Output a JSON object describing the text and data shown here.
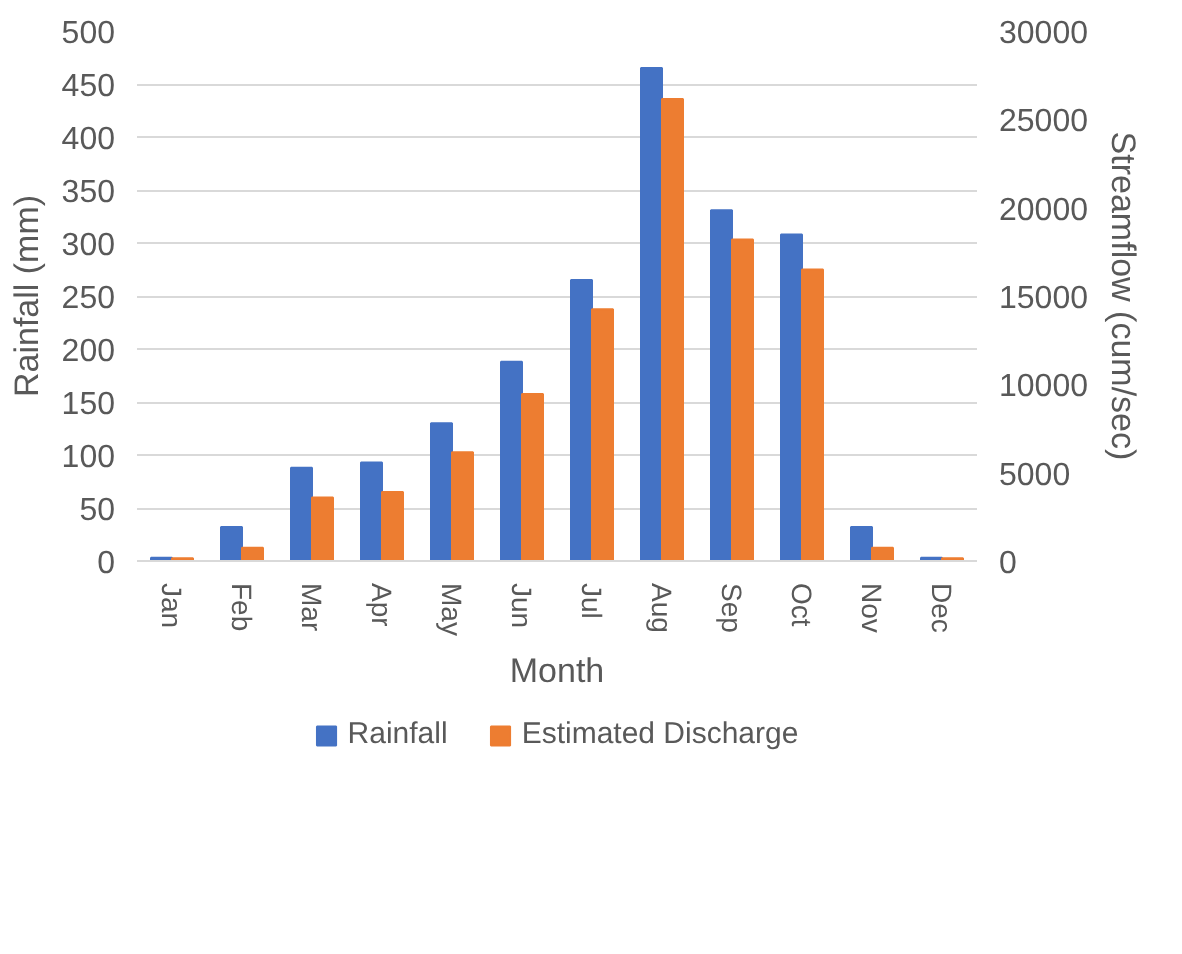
{
  "chart_data": {
    "type": "bar",
    "xlabel": "Month",
    "ylabel": "Rainfall (mm)",
    "y2label": "Streamflow (cum/sec)",
    "categories": [
      "Jan",
      "Feb",
      "Mar",
      "Apr",
      "May",
      "Jun",
      "Jul",
      "Aug",
      "Sep",
      "Oct",
      "Nov",
      "Dec"
    ],
    "series": [
      {
        "name": "Rainfall",
        "color": "#4472c4",
        "values": [
          3,
          32,
          88,
          93,
          130,
          188,
          265,
          465,
          331,
          308,
          32,
          3
        ]
      },
      {
        "name": "Estimated Discharge",
        "color": "#ed7d31",
        "axis": "y2",
        "values": [
          150,
          750,
          3600,
          3900,
          6150,
          9450,
          14250,
          26150,
          18200,
          16500,
          750,
          150
        ]
      }
    ],
    "ylim": [
      0,
      500
    ],
    "yticks": [
      0,
      50,
      100,
      150,
      200,
      250,
      300,
      350,
      400,
      450,
      500
    ],
    "y2lim": [
      0,
      30000
    ],
    "y2ticks": [
      0,
      5000,
      10000,
      15000,
      20000,
      25000,
      30000
    ],
    "grid": "y",
    "legend": "bottom"
  }
}
